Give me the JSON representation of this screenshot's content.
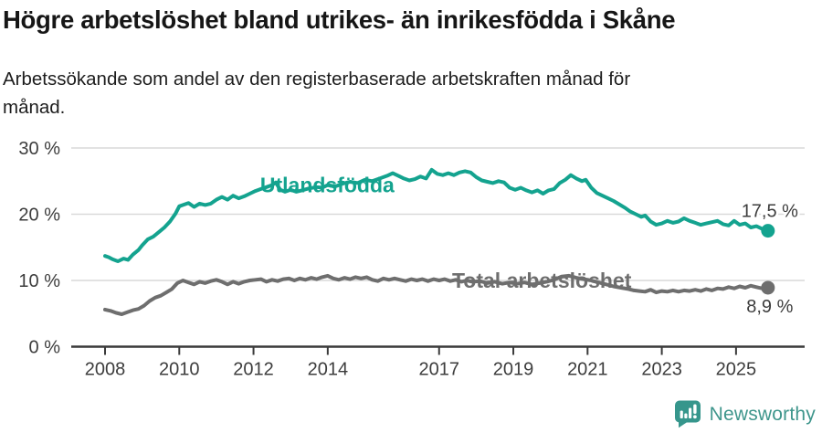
{
  "header": {
    "title": "Högre arbetslöshet bland utrikes- än inrikesfödda i Skåne",
    "subtitle_lines": [
      "Arbetssökande som andel av den registerbaserade arbetskraften månad för",
      "månad."
    ]
  },
  "footer": {
    "brand": "Newsworthy",
    "brand_color": "#3f968c",
    "logo_icon": "newsworthy-speech-bubble-bar-chart-icon"
  },
  "chart_data": {
    "type": "line",
    "title": "Högre arbetslöshet bland utrikes- än inrikesfödda i Skåne",
    "subtitle": "Arbetssökande som andel av den registerbaserade arbetskraften månad för månad.",
    "unit": "%",
    "xlabel": "",
    "ylabel": "",
    "ylim": [
      0,
      30
    ],
    "x_range_years": [
      2007.1,
      2026.8
    ],
    "grid": "horizontal",
    "legend_position": "inline-labels",
    "colors": {
      "grid": "#d9d9d9",
      "axis": "#3a3a3a",
      "tick_text": "#3d3d3d"
    },
    "y_ticks": [
      {
        "value": 0,
        "label": "0 %"
      },
      {
        "value": 10,
        "label": "10 %"
      },
      {
        "value": 20,
        "label": "20 %"
      },
      {
        "value": 30,
        "label": "30 %"
      }
    ],
    "x_ticks": [
      {
        "value": 2008,
        "label": "2008"
      },
      {
        "value": 2010,
        "label": "2010"
      },
      {
        "value": 2012,
        "label": "2012"
      },
      {
        "value": 2014,
        "label": "2014"
      },
      {
        "value": 2017,
        "label": "2017"
      },
      {
        "value": 2019,
        "label": "2019"
      },
      {
        "value": 2021,
        "label": "2021"
      },
      {
        "value": 2023,
        "label": "2023"
      },
      {
        "value": 2025,
        "label": "2025"
      }
    ],
    "series": [
      {
        "name": "Utlandsfödda",
        "color": "#14a38f",
        "end_value": 17.5,
        "end_label": "17,5 %",
        "label_anchor": {
          "x": 2012.18,
          "y": 23.3
        },
        "points": [
          [
            2008.0,
            13.7
          ],
          [
            2008.1,
            13.5
          ],
          [
            2008.2,
            13.2
          ],
          [
            2008.35,
            12.9
          ],
          [
            2008.5,
            13.3
          ],
          [
            2008.62,
            13.1
          ],
          [
            2008.75,
            13.9
          ],
          [
            2008.9,
            14.6
          ],
          [
            2009.0,
            15.3
          ],
          [
            2009.15,
            16.2
          ],
          [
            2009.3,
            16.6
          ],
          [
            2009.45,
            17.3
          ],
          [
            2009.6,
            18.0
          ],
          [
            2009.75,
            18.9
          ],
          [
            2009.9,
            20.1
          ],
          [
            2010.0,
            21.2
          ],
          [
            2010.1,
            21.4
          ],
          [
            2010.25,
            21.7
          ],
          [
            2010.4,
            21.1
          ],
          [
            2010.55,
            21.6
          ],
          [
            2010.7,
            21.4
          ],
          [
            2010.85,
            21.6
          ],
          [
            2011.0,
            22.2
          ],
          [
            2011.15,
            22.6
          ],
          [
            2011.3,
            22.2
          ],
          [
            2011.45,
            22.8
          ],
          [
            2011.6,
            22.4
          ],
          [
            2011.75,
            22.7
          ],
          [
            2011.9,
            23.1
          ],
          [
            2012.05,
            23.5
          ],
          [
            2012.2,
            23.8
          ],
          [
            2012.35,
            24.1
          ],
          [
            2012.5,
            24.4
          ],
          [
            2012.6,
            24.8
          ],
          [
            2012.72,
            23.7
          ],
          [
            2012.85,
            23.4
          ],
          [
            2013.0,
            23.7
          ],
          [
            2013.15,
            23.4
          ],
          [
            2013.3,
            23.6
          ],
          [
            2013.5,
            23.9
          ],
          [
            2013.7,
            24.1
          ],
          [
            2013.85,
            24.0
          ],
          [
            2014.0,
            24.4
          ],
          [
            2014.2,
            24.2
          ],
          [
            2014.4,
            24.6
          ],
          [
            2014.6,
            24.9
          ],
          [
            2014.8,
            24.7
          ],
          [
            2015.0,
            25.2
          ],
          [
            2015.2,
            25.0
          ],
          [
            2015.4,
            25.4
          ],
          [
            2015.6,
            25.8
          ],
          [
            2015.75,
            26.2
          ],
          [
            2015.9,
            25.8
          ],
          [
            2016.05,
            25.4
          ],
          [
            2016.2,
            25.1
          ],
          [
            2016.35,
            25.3
          ],
          [
            2016.5,
            25.7
          ],
          [
            2016.65,
            25.4
          ],
          [
            2016.8,
            26.7
          ],
          [
            2016.95,
            26.1
          ],
          [
            2017.1,
            25.9
          ],
          [
            2017.25,
            26.2
          ],
          [
            2017.4,
            25.9
          ],
          [
            2017.55,
            26.3
          ],
          [
            2017.7,
            26.5
          ],
          [
            2017.85,
            26.3
          ],
          [
            2018.0,
            25.6
          ],
          [
            2018.15,
            25.1
          ],
          [
            2018.3,
            24.9
          ],
          [
            2018.45,
            24.7
          ],
          [
            2018.6,
            25.0
          ],
          [
            2018.75,
            24.8
          ],
          [
            2018.9,
            24.0
          ],
          [
            2019.05,
            23.7
          ],
          [
            2019.2,
            24.0
          ],
          [
            2019.35,
            23.6
          ],
          [
            2019.5,
            23.3
          ],
          [
            2019.65,
            23.6
          ],
          [
            2019.8,
            23.1
          ],
          [
            2019.95,
            23.6
          ],
          [
            2020.1,
            23.8
          ],
          [
            2020.25,
            24.7
          ],
          [
            2020.4,
            25.2
          ],
          [
            2020.55,
            25.9
          ],
          [
            2020.7,
            25.4
          ],
          [
            2020.85,
            25.0
          ],
          [
            2020.95,
            25.2
          ],
          [
            2021.1,
            24.0
          ],
          [
            2021.25,
            23.2
          ],
          [
            2021.4,
            22.8
          ],
          [
            2021.55,
            22.4
          ],
          [
            2021.7,
            22.0
          ],
          [
            2021.85,
            21.5
          ],
          [
            2022.0,
            21.0
          ],
          [
            2022.15,
            20.4
          ],
          [
            2022.3,
            20.0
          ],
          [
            2022.45,
            19.6
          ],
          [
            2022.55,
            19.8
          ],
          [
            2022.7,
            18.9
          ],
          [
            2022.85,
            18.4
          ],
          [
            2023.0,
            18.6
          ],
          [
            2023.15,
            19.0
          ],
          [
            2023.3,
            18.7
          ],
          [
            2023.45,
            18.9
          ],
          [
            2023.6,
            19.4
          ],
          [
            2023.75,
            19.0
          ],
          [
            2023.9,
            18.7
          ],
          [
            2024.05,
            18.4
          ],
          [
            2024.2,
            18.6
          ],
          [
            2024.35,
            18.8
          ],
          [
            2024.5,
            19.0
          ],
          [
            2024.65,
            18.5
          ],
          [
            2024.8,
            18.3
          ],
          [
            2024.95,
            19.0
          ],
          [
            2025.1,
            18.4
          ],
          [
            2025.25,
            18.6
          ],
          [
            2025.4,
            18.0
          ],
          [
            2025.55,
            18.2
          ],
          [
            2025.7,
            17.8
          ],
          [
            2025.86,
            17.5
          ]
        ]
      },
      {
        "name": "Total arbetslöshet",
        "color": "#6e6e6e",
        "end_value": 8.9,
        "end_label": "8,9 %",
        "label_anchor": {
          "x": 2017.35,
          "y": 8.9
        },
        "points": [
          [
            2008.0,
            5.6
          ],
          [
            2008.15,
            5.4
          ],
          [
            2008.3,
            5.1
          ],
          [
            2008.45,
            4.9
          ],
          [
            2008.6,
            5.2
          ],
          [
            2008.75,
            5.5
          ],
          [
            2008.9,
            5.7
          ],
          [
            2009.05,
            6.2
          ],
          [
            2009.2,
            6.9
          ],
          [
            2009.35,
            7.4
          ],
          [
            2009.5,
            7.7
          ],
          [
            2009.65,
            8.2
          ],
          [
            2009.8,
            8.7
          ],
          [
            2009.95,
            9.6
          ],
          [
            2010.1,
            10.0
          ],
          [
            2010.25,
            9.7
          ],
          [
            2010.4,
            9.4
          ],
          [
            2010.55,
            9.8
          ],
          [
            2010.7,
            9.6
          ],
          [
            2010.85,
            9.9
          ],
          [
            2011.0,
            10.1
          ],
          [
            2011.15,
            9.8
          ],
          [
            2011.3,
            9.4
          ],
          [
            2011.45,
            9.8
          ],
          [
            2011.6,
            9.5
          ],
          [
            2011.75,
            9.8
          ],
          [
            2011.9,
            10.0
          ],
          [
            2012.05,
            10.1
          ],
          [
            2012.2,
            10.2
          ],
          [
            2012.35,
            9.8
          ],
          [
            2012.5,
            10.1
          ],
          [
            2012.65,
            9.9
          ],
          [
            2012.8,
            10.2
          ],
          [
            2012.95,
            10.3
          ],
          [
            2013.1,
            10.0
          ],
          [
            2013.25,
            10.3
          ],
          [
            2013.4,
            10.1
          ],
          [
            2013.55,
            10.4
          ],
          [
            2013.7,
            10.2
          ],
          [
            2013.85,
            10.5
          ],
          [
            2014.0,
            10.7
          ],
          [
            2014.15,
            10.3
          ],
          [
            2014.3,
            10.1
          ],
          [
            2014.45,
            10.4
          ],
          [
            2014.6,
            10.2
          ],
          [
            2014.75,
            10.5
          ],
          [
            2014.9,
            10.3
          ],
          [
            2015.05,
            10.5
          ],
          [
            2015.2,
            10.1
          ],
          [
            2015.35,
            9.9
          ],
          [
            2015.5,
            10.3
          ],
          [
            2015.65,
            10.1
          ],
          [
            2015.8,
            10.3
          ],
          [
            2015.95,
            10.1
          ],
          [
            2016.1,
            9.9
          ],
          [
            2016.25,
            10.2
          ],
          [
            2016.4,
            10.0
          ],
          [
            2016.55,
            10.2
          ],
          [
            2016.7,
            9.9
          ],
          [
            2016.85,
            10.2
          ],
          [
            2017.0,
            10.0
          ],
          [
            2017.15,
            10.2
          ],
          [
            2017.3,
            9.9
          ],
          [
            2017.45,
            10.1
          ],
          [
            2017.6,
            9.8
          ],
          [
            2017.75,
            10.0
          ],
          [
            2017.9,
            9.8
          ],
          [
            2018.1,
            9.9
          ],
          [
            2018.3,
            9.6
          ],
          [
            2018.5,
            9.8
          ],
          [
            2018.7,
            9.5
          ],
          [
            2018.9,
            9.7
          ],
          [
            2019.1,
            9.5
          ],
          [
            2019.3,
            9.7
          ],
          [
            2019.5,
            9.4
          ],
          [
            2019.7,
            9.6
          ],
          [
            2019.9,
            9.8
          ],
          [
            2020.1,
            10.1
          ],
          [
            2020.3,
            10.6
          ],
          [
            2020.5,
            10.7
          ],
          [
            2020.7,
            10.4
          ],
          [
            2020.9,
            10.2
          ],
          [
            2021.1,
            10.0
          ],
          [
            2021.3,
            9.7
          ],
          [
            2021.5,
            9.4
          ],
          [
            2021.7,
            9.1
          ],
          [
            2021.9,
            8.9
          ],
          [
            2022.1,
            8.7
          ],
          [
            2022.25,
            8.5
          ],
          [
            2022.4,
            8.4
          ],
          [
            2022.55,
            8.3
          ],
          [
            2022.7,
            8.6
          ],
          [
            2022.85,
            8.2
          ],
          [
            2023.0,
            8.4
          ],
          [
            2023.15,
            8.3
          ],
          [
            2023.3,
            8.5
          ],
          [
            2023.45,
            8.3
          ],
          [
            2023.6,
            8.5
          ],
          [
            2023.75,
            8.4
          ],
          [
            2023.9,
            8.6
          ],
          [
            2024.05,
            8.4
          ],
          [
            2024.2,
            8.7
          ],
          [
            2024.35,
            8.5
          ],
          [
            2024.5,
            8.8
          ],
          [
            2024.65,
            8.7
          ],
          [
            2024.8,
            9.0
          ],
          [
            2024.95,
            8.8
          ],
          [
            2025.1,
            9.1
          ],
          [
            2025.25,
            8.9
          ],
          [
            2025.4,
            9.2
          ],
          [
            2025.55,
            9.0
          ],
          [
            2025.7,
            8.8
          ],
          [
            2025.86,
            8.9
          ]
        ]
      }
    ]
  }
}
